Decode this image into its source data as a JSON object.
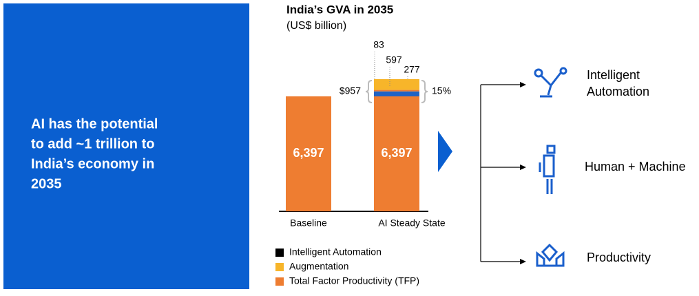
{
  "panel_text": [
    "AI has the potential",
    "to add ~1 trillion to",
    "India’s economy in",
    "2035"
  ],
  "chart_data": {
    "type": "bar",
    "title": "India’s GVA in 2035",
    "subtitle": "(US$ billion)",
    "categories": [
      "Baseline",
      "AI Steady State"
    ],
    "series": [
      {
        "name": "Intelligent Automation",
        "color": "#1f62c4",
        "legend_color": "#000000"
      },
      {
        "name": "Augmentation",
        "color": "#f7b52a",
        "legend_color": "#f7b52a"
      },
      {
        "name": "Total Factor Productivity (TFP)",
        "color": "#ee7d31",
        "legend_color": "#ee7d31"
      }
    ],
    "stacks": [
      [
        {
          "series": 2,
          "value": 6397,
          "label": "6,397"
        }
      ],
      [
        {
          "series": 2,
          "value": 6397,
          "label": "6,397"
        },
        {
          "series": 0,
          "value": 277,
          "label": "277"
        },
        {
          "series": 2,
          "value": 83,
          "label": "83"
        },
        {
          "series": 1,
          "value": 597,
          "label": "597"
        }
      ]
    ],
    "annotations": [
      "$957",
      "15%"
    ]
  },
  "items": [
    "Intelligent\nAutomation",
    "Human + Machine",
    "Productivity"
  ]
}
